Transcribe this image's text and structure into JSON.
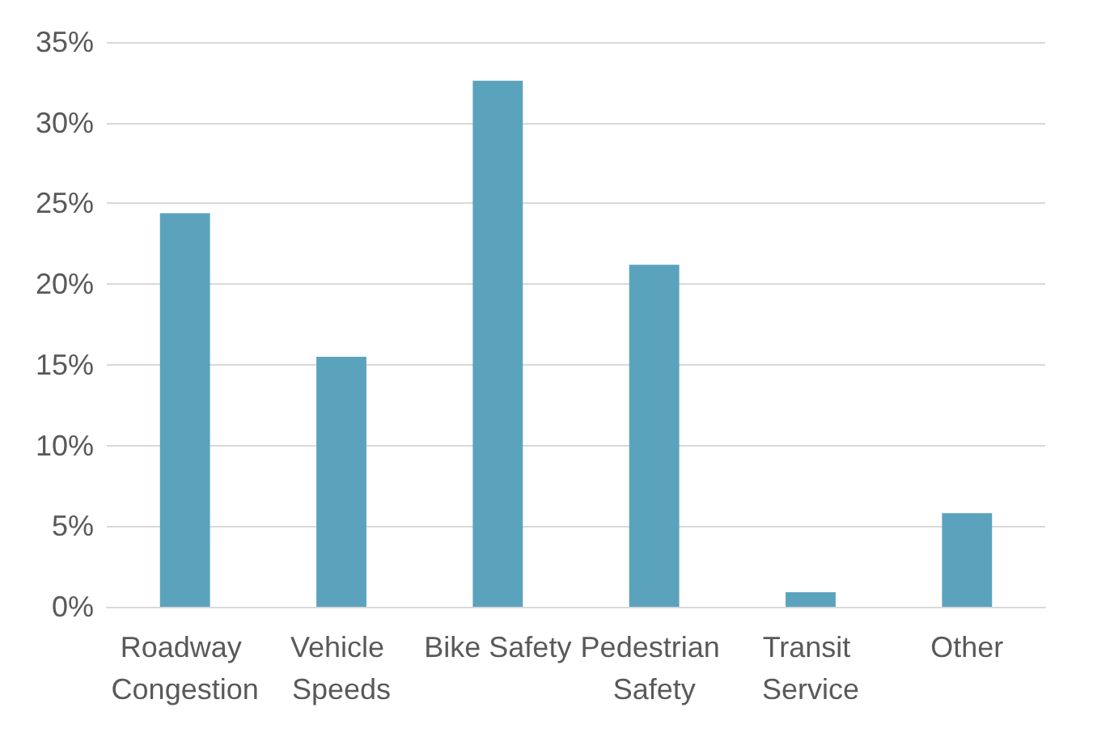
{
  "chart_data": {
    "type": "bar",
    "categories": [
      "Roadway Congestion",
      "Vehicle Speeds",
      "Bike Safety",
      "Pedestrian Safety",
      "Transit Service",
      "Other"
    ],
    "values": [
      24.4,
      15.5,
      32.6,
      21.2,
      0.9,
      5.8
    ],
    "color": "#5ba3bd",
    "ylim": [
      0,
      35
    ],
    "yticks": [
      {
        "value": 0,
        "label": "0%"
      },
      {
        "value": 5,
        "label": "5%"
      },
      {
        "value": 10,
        "label": "10%"
      },
      {
        "value": 15,
        "label": "15%"
      },
      {
        "value": 20,
        "label": "20%"
      },
      {
        "value": 25,
        "label": "25%"
      },
      {
        "value": 30,
        "label": "30%"
      },
      {
        "value": 35,
        "label": "35%"
      }
    ],
    "grid": "y"
  }
}
